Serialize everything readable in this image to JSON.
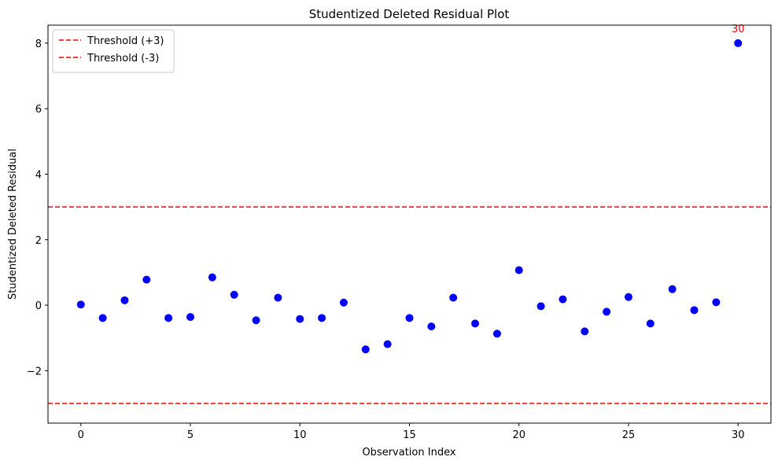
{
  "chart_data": {
    "type": "scatter",
    "title": "Studentized Deleted Residual Plot",
    "xlabel": "Observation Index",
    "ylabel": "Studentized Deleted Residual",
    "xlim": [
      -1.5,
      31.5
    ],
    "ylim": [
      -3.6,
      8.55
    ],
    "xticks": [
      0,
      5,
      10,
      15,
      20,
      25,
      30
    ],
    "yticks": [
      -2,
      0,
      2,
      4,
      6,
      8
    ],
    "grid": false,
    "legend_position": "top-left",
    "point_color": "#0000ff",
    "series": [
      {
        "x": [
          0,
          1,
          2,
          3,
          4,
          5,
          6,
          7,
          8,
          9,
          10,
          11,
          12,
          13,
          14,
          15,
          16,
          17,
          18,
          19,
          20,
          21,
          22,
          23,
          24,
          25,
          26,
          27,
          28,
          29,
          30
        ],
        "y": [
          0.02,
          -0.39,
          0.15,
          0.78,
          -0.39,
          -0.36,
          0.85,
          0.32,
          -0.46,
          0.23,
          -0.42,
          -0.39,
          0.08,
          -1.35,
          -1.19,
          -0.39,
          -0.65,
          0.23,
          -0.56,
          -0.87,
          1.07,
          -0.03,
          0.18,
          -0.8,
          -0.2,
          0.25,
          -0.56,
          0.49,
          -0.15,
          0.09,
          8.0
        ]
      }
    ],
    "reference_lines": [
      {
        "label": "Threshold (+3)",
        "y": 3,
        "color": "#ff0000",
        "style": "dashed"
      },
      {
        "label": "Threshold (-3)",
        "y": -3,
        "color": "#ff0000",
        "style": "dashed"
      }
    ],
    "annotations": [
      {
        "text": "30",
        "x": 30,
        "y": 8.0,
        "color": "#ff0000"
      }
    ]
  }
}
